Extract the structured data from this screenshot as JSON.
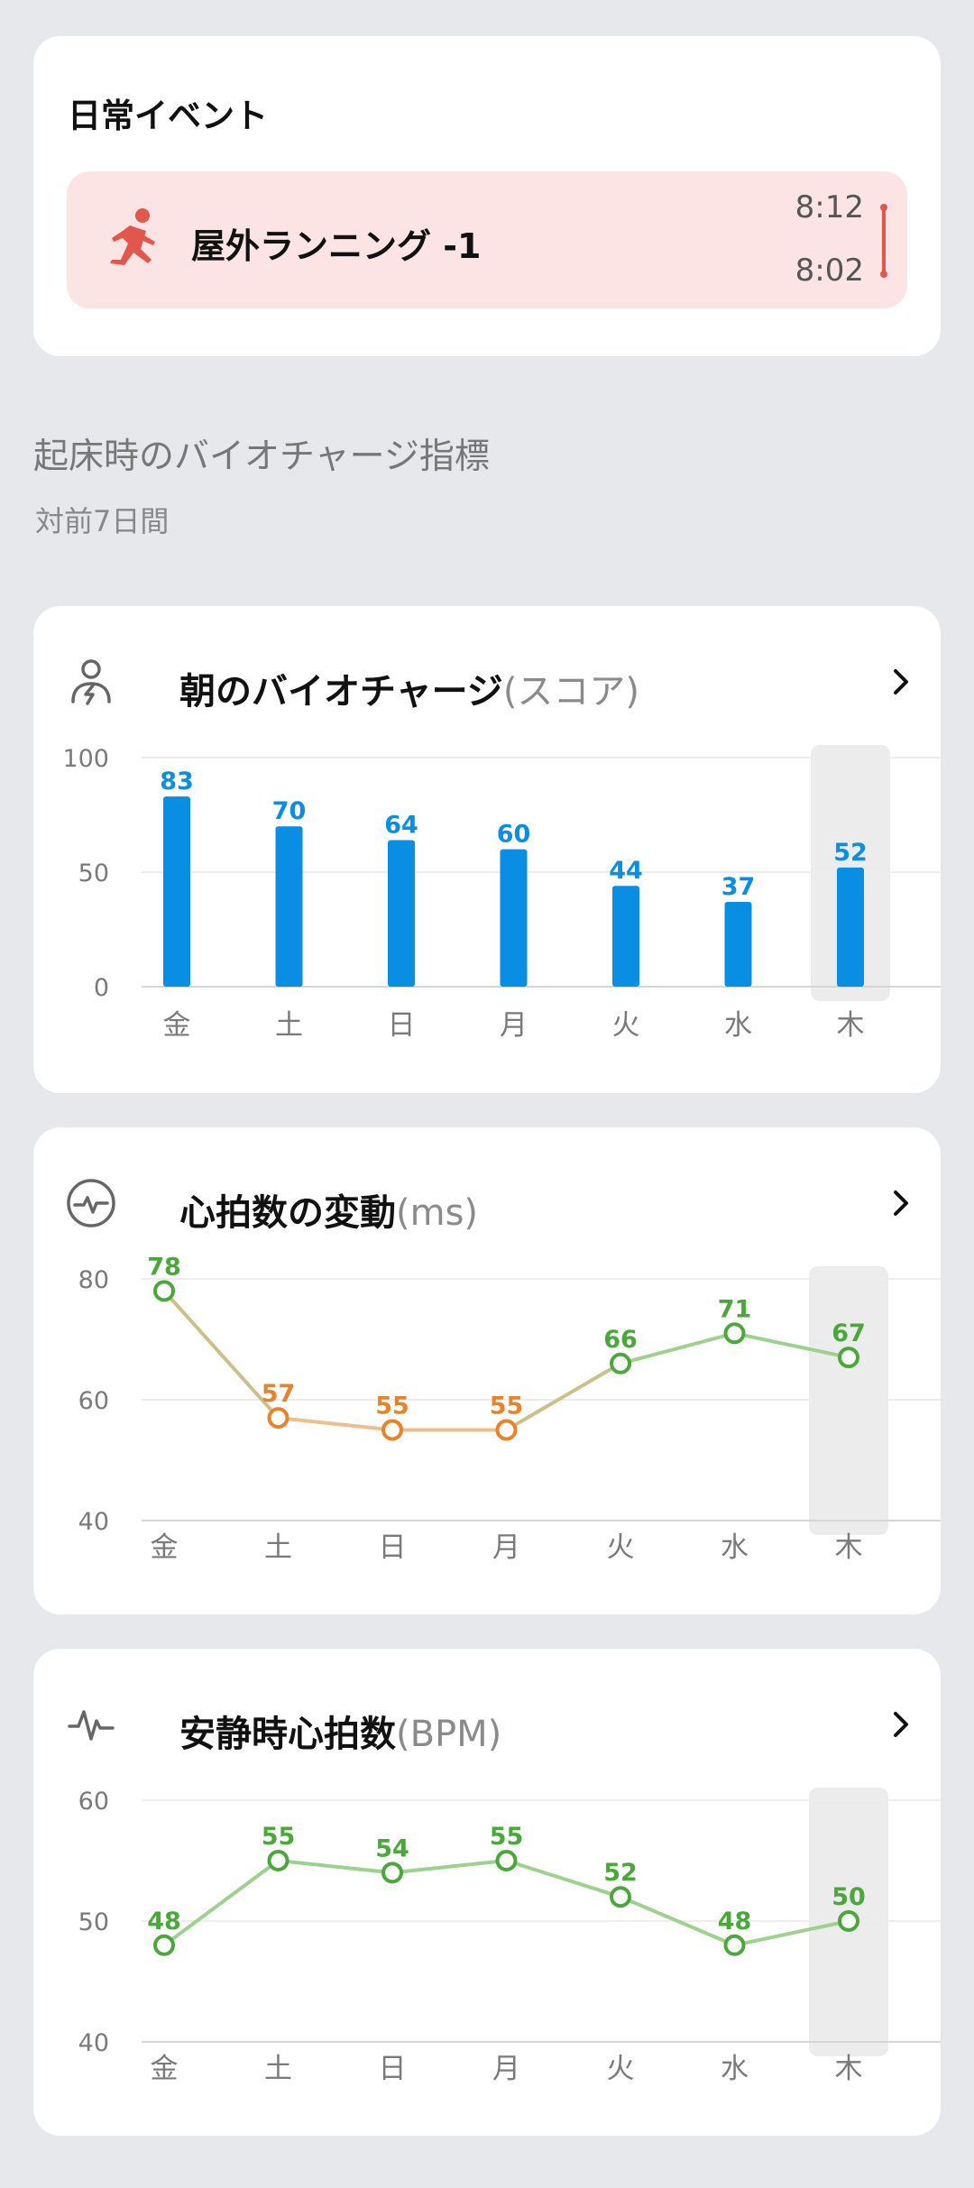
{
  "events": {
    "title": "日常イベント",
    "item": {
      "icon": "running-icon",
      "label": "屋外ランニング -1",
      "time_end": "8:12",
      "time_start": "8:02"
    }
  },
  "section": {
    "title": "起床時のバイオチャージ指標",
    "subtitle": "対前7日間"
  },
  "colors": {
    "blue": "#0a8ee3",
    "green": "#4aa83a",
    "orange": "#e8832c",
    "event": "#e2574c"
  },
  "cards": [
    {
      "title": "朝のバイオチャージ",
      "unit": "(スコア)",
      "icon": "person-bolt-icon"
    },
    {
      "title": "心拍数の変動",
      "unit": "(ms)",
      "icon": "heart-pulse-circle-icon"
    },
    {
      "title": "安静時心拍数",
      "unit": "(BPM)",
      "icon": "heartbeat-wave-icon"
    }
  ],
  "chart_data": [
    {
      "type": "bar",
      "title": "朝のバイオチャージ(スコア)",
      "categories": [
        "金",
        "土",
        "日",
        "月",
        "火",
        "水",
        "木"
      ],
      "values": [
        83,
        70,
        64,
        60,
        44,
        37,
        52
      ],
      "ylim": [
        0,
        100
      ],
      "yticks": [
        0,
        50,
        100
      ],
      "highlight_index": 6,
      "grid": true
    },
    {
      "type": "line",
      "title": "心拍数の変動(ms)",
      "categories": [
        "金",
        "土",
        "日",
        "月",
        "火",
        "水",
        "木"
      ],
      "values": [
        78,
        57,
        55,
        55,
        66,
        71,
        67
      ],
      "status": [
        "normal",
        "low",
        "low",
        "low",
        "normal",
        "normal",
        "normal"
      ],
      "ylim": [
        40,
        80
      ],
      "yticks": [
        40,
        60,
        80
      ],
      "highlight_index": 6,
      "grid": true
    },
    {
      "type": "line",
      "title": "安静時心拍数(BPM)",
      "categories": [
        "金",
        "土",
        "日",
        "月",
        "火",
        "水",
        "木"
      ],
      "values": [
        48,
        55,
        54,
        55,
        52,
        48,
        50
      ],
      "status": [
        "normal",
        "normal",
        "normal",
        "normal",
        "normal",
        "normal",
        "normal"
      ],
      "ylim": [
        40,
        60
      ],
      "yticks": [
        40,
        50,
        60
      ],
      "highlight_index": 6,
      "grid": true
    }
  ]
}
